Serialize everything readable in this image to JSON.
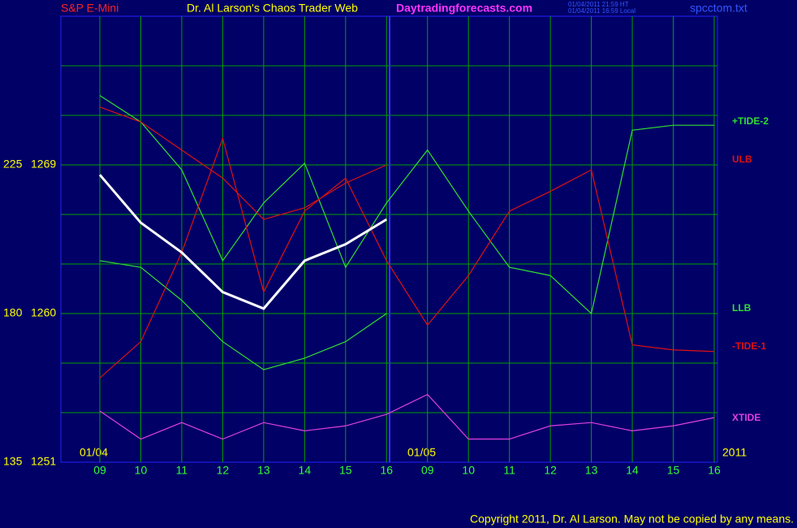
{
  "chart_data": {
    "type": "line",
    "header": {
      "symbol": "S&P E-Mini",
      "title": "Dr. Al Larson's Chaos Trader Web",
      "site": "Daytradingforecasts.com",
      "time_ht": "01/04/2011 21:59 HT",
      "time_local": "01/04/2011 16:59 Local",
      "file": "spcctom.txt"
    },
    "footer": "Copyright 2011, Dr. Al Larson. May not be copied by any means.",
    "date_labels": [
      "01/04",
      "01/05",
      "2011"
    ],
    "categories": [
      "09",
      "10",
      "11",
      "12",
      "13",
      "14",
      "15",
      "16",
      "09",
      "10",
      "11",
      "12",
      "13",
      "14",
      "15",
      "16"
    ],
    "ylim": [
      1251,
      1278
    ],
    "yticks": [
      1251,
      1260,
      1269
    ],
    "y2lim": [
      135,
      270
    ],
    "y2ticks": [
      135,
      180,
      225
    ],
    "grid": true,
    "series": [
      {
        "name": "+TIDE-2",
        "color": "#33dd33",
        "values": [
          1273.2,
          1271.6,
          1268.7,
          1263.2,
          1266.7,
          1269.1,
          1262.8,
          1266.7,
          1269.9,
          1266.2,
          1262.8,
          1262.3,
          1260.0,
          1271.1,
          1271.4,
          1271.4
        ]
      },
      {
        "name": "ULB",
        "color": "#dd1111",
        "values": [
          1272.5,
          1271.6,
          1269.9,
          1268.2,
          1265.7,
          1266.4,
          1267.9,
          1269.0,
          null,
          null,
          null,
          null,
          null,
          null,
          null,
          null
        ]
      },
      {
        "name": "LLB",
        "color": "#33dd33",
        "values": [
          1263.2,
          1262.8,
          1260.8,
          1258.3,
          1256.6,
          1257.3,
          1258.3,
          1260.0,
          null,
          null,
          null,
          null,
          null,
          null,
          null,
          null
        ]
      },
      {
        "name": "-TIDE-1",
        "color": "#dd1111",
        "values": [
          1256.1,
          1258.3,
          1263.7,
          1270.6,
          1261.3,
          1266.2,
          1268.2,
          1263.2,
          1259.3,
          1262.3,
          1266.2,
          1267.4,
          1268.7,
          1258.1,
          1257.8,
          1257.7
        ]
      },
      {
        "name": "XTIDE",
        "color": "#e040e0",
        "values": [
          1254.1,
          1252.4,
          1253.4,
          1252.4,
          1253.4,
          1252.9,
          1253.2,
          1253.9,
          1255.1,
          1252.4,
          1252.4,
          1253.2,
          1253.4,
          1252.9,
          1253.2,
          1253.7
        ]
      }
    ],
    "price": {
      "color": "#ffffff",
      "values": [
        1268.4,
        1265.5,
        1263.7,
        1261.3,
        1260.3,
        1263.2,
        1264.2,
        1265.7,
        null,
        null,
        null,
        null,
        null,
        null,
        null,
        null
      ]
    }
  }
}
